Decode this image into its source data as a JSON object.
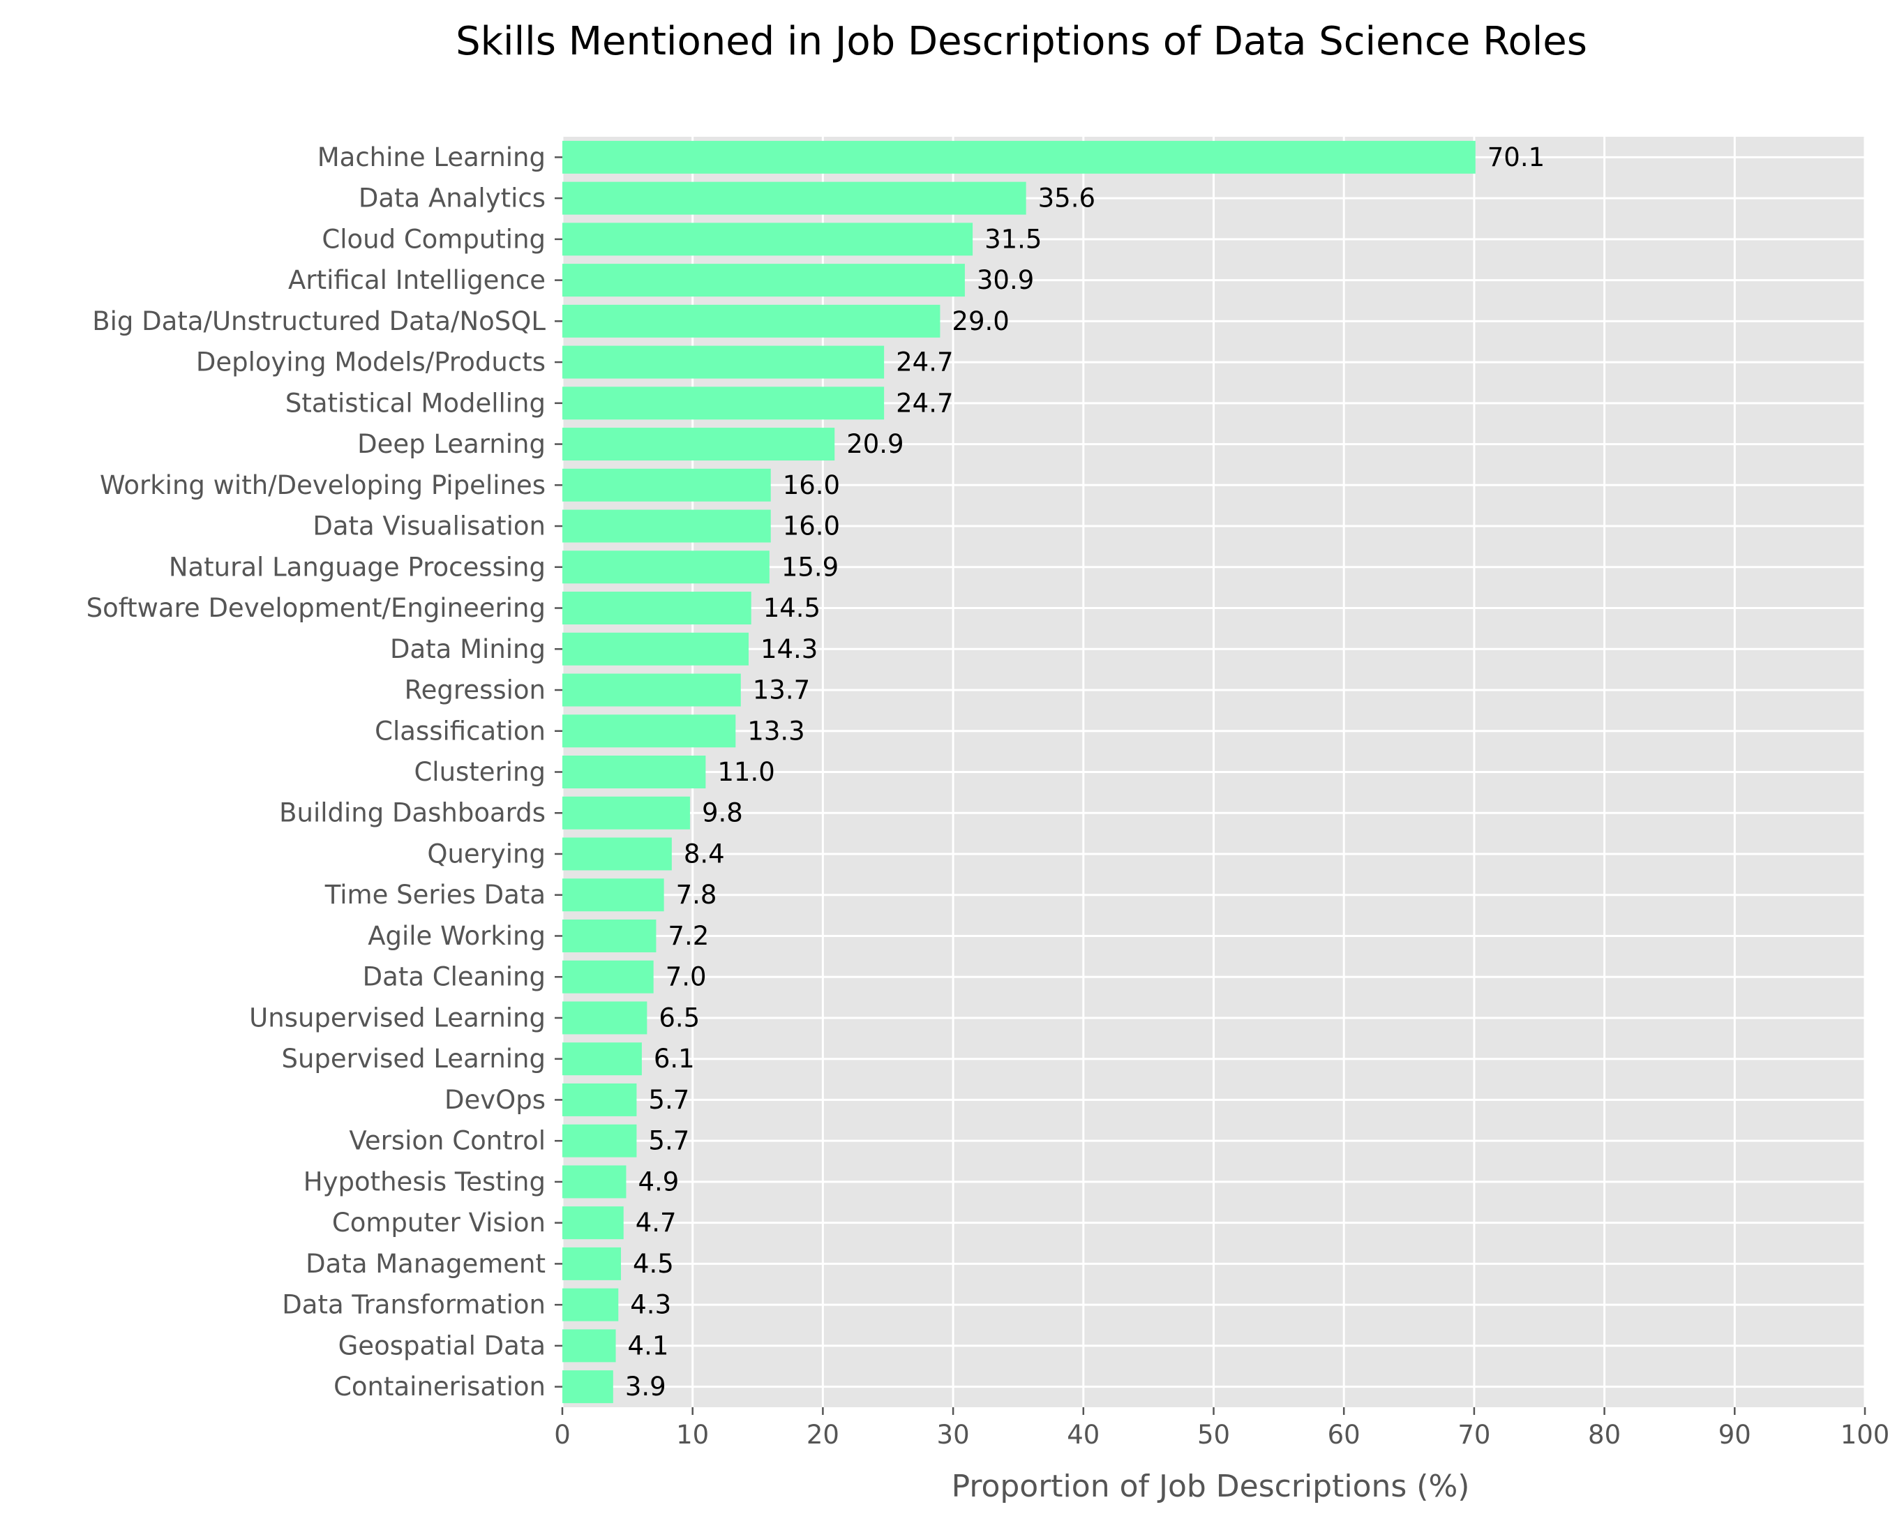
{
  "chart_data": {
    "type": "bar",
    "orientation": "horizontal",
    "title": "Skills Mentioned in Job Descriptions of Data Science Roles",
    "xlabel": "Proportion of Job Descriptions (%)",
    "ylabel": "",
    "xlim": [
      0,
      100
    ],
    "xticks": [
      0,
      10,
      20,
      30,
      40,
      50,
      60,
      70,
      80,
      90,
      100
    ],
    "grid": true,
    "style": "ggplot",
    "colors": {
      "bar": "#6effb4",
      "plot_background": "#e5e5e5",
      "grid": "#ffffff",
      "tick_text": "#555555"
    },
    "categories": [
      "Machine Learning",
      "Data Analytics",
      "Cloud Computing",
      "Artifical Intelligence",
      "Big Data/Unstructured Data/NoSQL",
      "Deploying Models/Products",
      "Statistical Modelling",
      "Deep Learning",
      "Working with/Developing Pipelines",
      "Data Visualisation",
      "Natural Language Processing",
      "Software Development/Engineering",
      "Data Mining",
      "Regression",
      "Classification",
      "Clustering",
      "Building Dashboards",
      "Querying",
      "Time Series Data",
      "Agile Working",
      "Data Cleaning",
      "Unsupervised Learning",
      "Supervised Learning",
      "DevOps",
      "Version Control",
      "Hypothesis Testing",
      "Computer Vision",
      "Data Management",
      "Data Transformation",
      "Geospatial Data",
      "Containerisation"
    ],
    "values": [
      70.1,
      35.6,
      31.5,
      30.9,
      29.0,
      24.7,
      24.7,
      20.9,
      16.0,
      16.0,
      15.9,
      14.5,
      14.3,
      13.7,
      13.3,
      11.0,
      9.8,
      8.4,
      7.8,
      7.2,
      7.0,
      6.5,
      6.1,
      5.7,
      5.7,
      4.9,
      4.7,
      4.5,
      4.3,
      4.1,
      3.9
    ],
    "value_labels": [
      "70.1",
      "35.6",
      "31.5",
      "30.9",
      "29.0",
      "24.7",
      "24.7",
      "20.9",
      "16.0",
      "16.0",
      "15.9",
      "14.5",
      "14.3",
      "13.7",
      "13.3",
      "11.0",
      "9.8",
      "8.4",
      "7.8",
      "7.2",
      "7.0",
      "6.5",
      "6.1",
      "5.7",
      "5.7",
      "4.9",
      "4.7",
      "4.5",
      "4.3",
      "4.1",
      "3.9"
    ]
  }
}
